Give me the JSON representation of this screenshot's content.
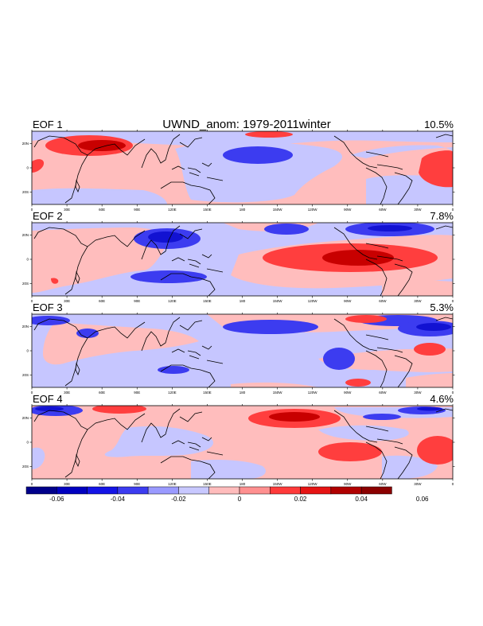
{
  "chart_data": {
    "type": "heatmap",
    "title": "UWND_anom: 1979-2011winter",
    "panels": [
      {
        "label": "EOF 1",
        "variance": "10.5%"
      },
      {
        "label": "EOF 2",
        "variance": "7.8%"
      },
      {
        "label": "EOF 3",
        "variance": "5.3%"
      },
      {
        "label": "EOF 4",
        "variance": "4.6%"
      }
    ],
    "x_ticks": [
      "0",
      "30E",
      "60E",
      "90E",
      "120E",
      "150E",
      "180",
      "150W",
      "120W",
      "90W",
      "60W",
      "30W",
      "0"
    ],
    "y_ticks": [
      "20N",
      "0",
      "20S"
    ],
    "colorbar": {
      "levels": [
        -0.07,
        -0.06,
        -0.05,
        -0.04,
        -0.03,
        -0.02,
        -0.01,
        0,
        0.01,
        0.02,
        0.03,
        0.04,
        0.05,
        0.06,
        0.07
      ],
      "labels": [
        "-0.06",
        "-0.04",
        "-0.02",
        "0",
        "0.02",
        "0.04",
        "0.06"
      ],
      "colors": [
        "#00008b",
        "#0000c0",
        "#1414e6",
        "#3c3cf0",
        "#9a9aff",
        "#c8c8ff",
        "#ffbcbc",
        "#ff9090",
        "#ff3a3a",
        "#e61414",
        "#b00000",
        "#8b0000"
      ]
    }
  }
}
